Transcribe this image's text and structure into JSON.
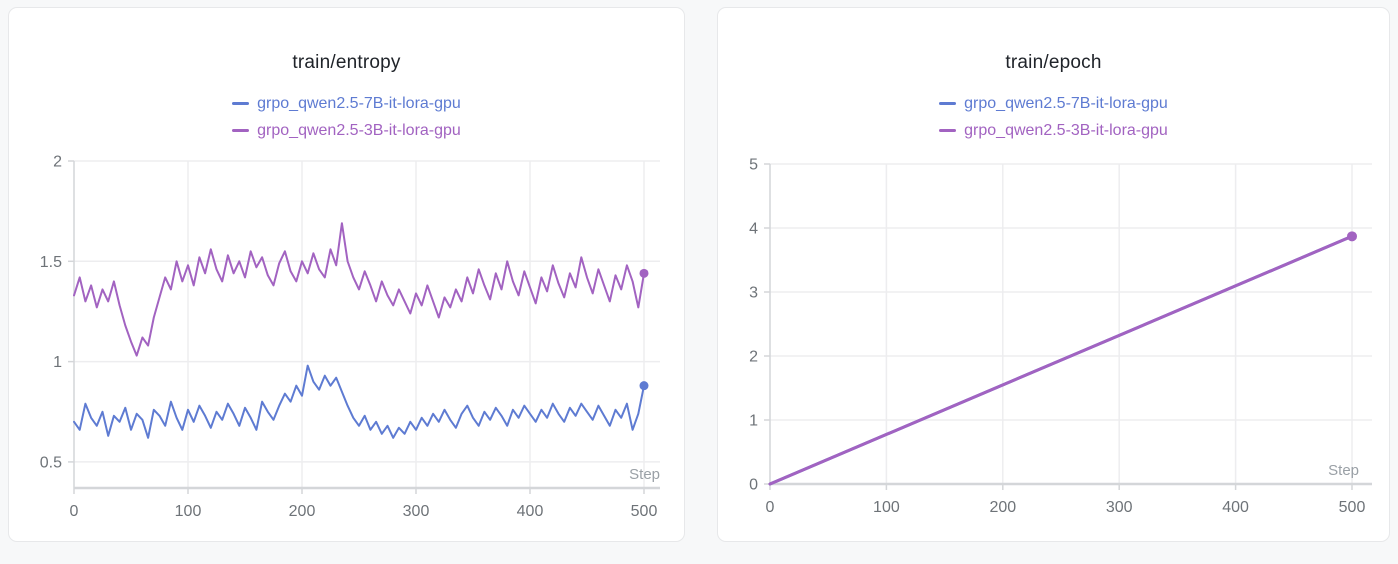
{
  "colors": {
    "run_blue": "#5E7BD2",
    "run_purple": "#A263C1",
    "grid_line": "#ededef",
    "axis_line": "#d4d6d9",
    "tick_label": "#6e7378",
    "step_label": "#9aa0a6",
    "title_text": "#20242a",
    "panel_background": "#ffffff",
    "panel_border": "#e7e8ea",
    "page_background": "#f7f8f9"
  },
  "chart_data": [
    {
      "type": "line",
      "title": "train/entropy",
      "xlabel": "Step",
      "legend_position": "top",
      "grid": true,
      "xlim": [
        0,
        500
      ],
      "ylim": [
        0.37,
        2.0
      ],
      "xticks": [
        0,
        100,
        200,
        300,
        400,
        500
      ],
      "yticks": [
        0.5,
        1,
        1.5,
        2
      ],
      "ytick_labels": [
        "0.5",
        "1",
        "1.5",
        "2"
      ],
      "x": [
        0,
        5,
        10,
        15,
        20,
        25,
        30,
        35,
        40,
        45,
        50,
        55,
        60,
        65,
        70,
        75,
        80,
        85,
        90,
        95,
        100,
        105,
        110,
        115,
        120,
        125,
        130,
        135,
        140,
        145,
        150,
        155,
        160,
        165,
        170,
        175,
        180,
        185,
        190,
        195,
        200,
        205,
        210,
        215,
        220,
        225,
        230,
        235,
        240,
        245,
        250,
        255,
        260,
        265,
        270,
        275,
        280,
        285,
        290,
        295,
        300,
        305,
        310,
        315,
        320,
        325,
        330,
        335,
        340,
        345,
        350,
        355,
        360,
        365,
        370,
        375,
        380,
        385,
        390,
        395,
        400,
        405,
        410,
        415,
        420,
        425,
        430,
        435,
        440,
        445,
        450,
        455,
        460,
        465,
        470,
        475,
        480,
        485,
        490,
        495,
        500
      ],
      "series": [
        {
          "name": "grpo_qwen2.5-7B-it-lora-gpu",
          "color": "#5E7BD2",
          "end_marker": true,
          "final_value": 0.88,
          "values": [
            0.7,
            0.66,
            0.79,
            0.72,
            0.68,
            0.75,
            0.63,
            0.73,
            0.7,
            0.77,
            0.66,
            0.74,
            0.71,
            0.62,
            0.76,
            0.73,
            0.68,
            0.8,
            0.72,
            0.66,
            0.76,
            0.7,
            0.78,
            0.73,
            0.67,
            0.75,
            0.71,
            0.79,
            0.74,
            0.68,
            0.77,
            0.72,
            0.66,
            0.8,
            0.75,
            0.71,
            0.78,
            0.84,
            0.8,
            0.88,
            0.83,
            0.98,
            0.9,
            0.86,
            0.93,
            0.88,
            0.92,
            0.85,
            0.78,
            0.72,
            0.68,
            0.73,
            0.66,
            0.7,
            0.64,
            0.68,
            0.62,
            0.67,
            0.64,
            0.7,
            0.66,
            0.72,
            0.68,
            0.74,
            0.7,
            0.76,
            0.71,
            0.67,
            0.74,
            0.78,
            0.72,
            0.68,
            0.75,
            0.71,
            0.77,
            0.73,
            0.68,
            0.76,
            0.72,
            0.78,
            0.74,
            0.7,
            0.76,
            0.72,
            0.79,
            0.74,
            0.7,
            0.77,
            0.73,
            0.79,
            0.75,
            0.71,
            0.78,
            0.73,
            0.68,
            0.76,
            0.72,
            0.79,
            0.66,
            0.74,
            0.88
          ]
        },
        {
          "name": "grpo_qwen2.5-3B-it-lora-gpu",
          "color": "#A263C1",
          "end_marker": true,
          "final_value": 1.44,
          "values": [
            1.33,
            1.42,
            1.3,
            1.38,
            1.27,
            1.36,
            1.3,
            1.4,
            1.28,
            1.18,
            1.1,
            1.03,
            1.12,
            1.08,
            1.22,
            1.32,
            1.42,
            1.36,
            1.5,
            1.4,
            1.48,
            1.38,
            1.52,
            1.44,
            1.56,
            1.46,
            1.4,
            1.53,
            1.44,
            1.5,
            1.42,
            1.55,
            1.47,
            1.52,
            1.43,
            1.38,
            1.49,
            1.55,
            1.45,
            1.4,
            1.5,
            1.44,
            1.54,
            1.46,
            1.42,
            1.56,
            1.48,
            1.69,
            1.5,
            1.42,
            1.36,
            1.45,
            1.38,
            1.3,
            1.4,
            1.33,
            1.28,
            1.36,
            1.3,
            1.24,
            1.34,
            1.28,
            1.38,
            1.3,
            1.22,
            1.32,
            1.27,
            1.36,
            1.3,
            1.42,
            1.34,
            1.46,
            1.38,
            1.31,
            1.44,
            1.36,
            1.5,
            1.4,
            1.33,
            1.45,
            1.37,
            1.29,
            1.42,
            1.35,
            1.48,
            1.39,
            1.32,
            1.44,
            1.37,
            1.52,
            1.42,
            1.34,
            1.46,
            1.38,
            1.3,
            1.43,
            1.36,
            1.48,
            1.4,
            1.27,
            1.44
          ]
        }
      ]
    },
    {
      "type": "line",
      "title": "train/epoch",
      "xlabel": "Step",
      "legend_position": "top",
      "grid": true,
      "xlim": [
        0,
        500
      ],
      "ylim": [
        0,
        5
      ],
      "xticks": [
        0,
        100,
        200,
        300,
        400,
        500
      ],
      "yticks": [
        0,
        1,
        2,
        3,
        4,
        5
      ],
      "ytick_labels": [
        "0",
        "1",
        "2",
        "3",
        "4",
        "5"
      ],
      "x": [
        0,
        500
      ],
      "series": [
        {
          "name": "grpo_qwen2.5-7B-it-lora-gpu",
          "color": "#5E7BD2",
          "end_marker": false,
          "final_value": 3.87,
          "values": [
            0,
            3.87
          ]
        },
        {
          "name": "grpo_qwen2.5-3B-it-lora-gpu",
          "color": "#A263C1",
          "end_marker": true,
          "final_value": 3.87,
          "values": [
            0,
            3.87
          ]
        }
      ]
    }
  ]
}
